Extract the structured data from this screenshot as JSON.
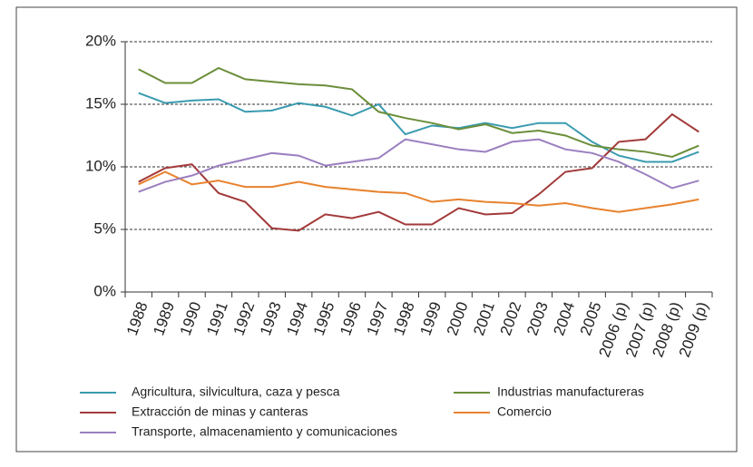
{
  "chart_data": {
    "type": "line",
    "categories": [
      "1988",
      "1989",
      "1990",
      "1991",
      "1992",
      "1993",
      "1994",
      "1995",
      "1996",
      "1997",
      "1998",
      "1999",
      "2000",
      "2001",
      "2002",
      "2003",
      "2004",
      "2005",
      "2006 (p)",
      "2007 (p)",
      "2008 (p)",
      "2009 (p)"
    ],
    "series": [
      {
        "name": "Agricultura, silvicultura, caza y pesca",
        "color": "#3a9bb0",
        "values": [
          15.9,
          15.1,
          15.3,
          15.4,
          14.4,
          14.5,
          15.1,
          14.8,
          14.1,
          15.0,
          12.6,
          13.3,
          13.1,
          13.5,
          13.1,
          13.5,
          13.5,
          12.0,
          10.9,
          10.4,
          10.4,
          11.2
        ]
      },
      {
        "name": "Industrias manufactureras",
        "color": "#6b8e3a",
        "values": [
          17.8,
          16.7,
          16.7,
          17.9,
          17.0,
          16.8,
          16.6,
          16.5,
          16.2,
          14.4,
          13.9,
          13.5,
          13.0,
          13.4,
          12.7,
          12.9,
          12.5,
          11.7,
          11.4,
          11.2,
          10.8,
          11.7
        ]
      },
      {
        "name": "Extracción de minas y canteras",
        "color": "#a33a3a",
        "values": [
          8.8,
          9.9,
          10.2,
          7.9,
          7.2,
          5.1,
          4.9,
          6.2,
          5.9,
          6.4,
          5.4,
          5.4,
          6.7,
          6.2,
          6.3,
          7.8,
          9.6,
          9.9,
          12.0,
          12.2,
          14.2,
          12.8
        ]
      },
      {
        "name": "Comercio",
        "color": "#e8822e",
        "values": [
          8.6,
          9.6,
          8.6,
          8.9,
          8.4,
          8.4,
          8.8,
          8.4,
          8.2,
          8.0,
          7.9,
          7.2,
          7.4,
          7.2,
          7.1,
          6.9,
          7.1,
          6.7,
          6.4,
          6.7,
          7.0,
          7.4
        ]
      },
      {
        "name": "Transporte, almacenamiento y comunicaciones",
        "color": "#9b7fc0",
        "values": [
          8.0,
          8.8,
          9.3,
          10.1,
          10.6,
          11.1,
          10.9,
          10.1,
          10.4,
          10.7,
          12.2,
          11.8,
          11.4,
          11.2,
          12.0,
          12.2,
          11.4,
          11.1,
          10.4,
          9.4,
          8.3,
          8.9
        ]
      }
    ],
    "ylim": [
      0,
      20
    ],
    "yticks": [
      {
        "value": 0,
        "label": "0%"
      },
      {
        "value": 5,
        "label": "5%"
      },
      {
        "value": 10,
        "label": "10%"
      },
      {
        "value": 15,
        "label": "15%"
      },
      {
        "value": 20,
        "label": "20%"
      }
    ],
    "grid": true
  }
}
